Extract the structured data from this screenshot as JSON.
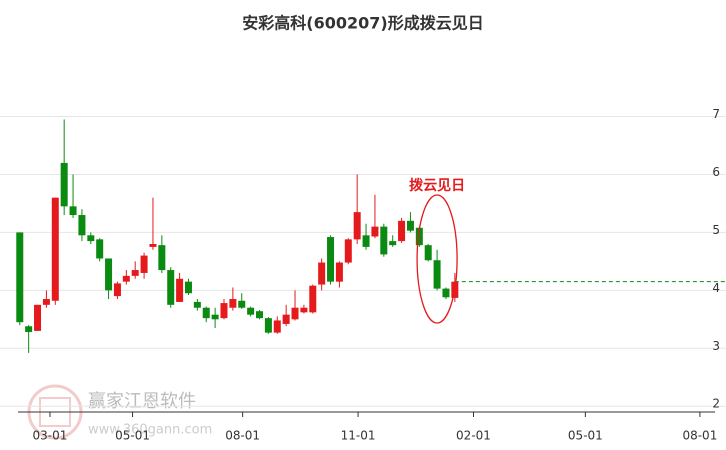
{
  "chart_data": {
    "type": "candlestick",
    "title": "安彩高科(600207)形成拨云见日",
    "annotation": "拨云见日",
    "watermark": [
      "赢家江恩软件",
      "www.360gann.com"
    ],
    "x": [
      0,
      1,
      2,
      3,
      4,
      5,
      6,
      7,
      8,
      9,
      10,
      11,
      12,
      13,
      14,
      15,
      16,
      17,
      18,
      19,
      20,
      21,
      22,
      23,
      24,
      25,
      26,
      27,
      28,
      29,
      30,
      31,
      32,
      33,
      34,
      35,
      36,
      37,
      38,
      39,
      40,
      41,
      42,
      43,
      44,
      45,
      46,
      47,
      48,
      49
    ],
    "series": [
      {
        "up_color": "#e41a1c",
        "down_color": "#0b8a12",
        "open": [
          5.0,
          3.38,
          3.3,
          3.75,
          3.82,
          6.2,
          5.45,
          5.3,
          4.95,
          4.88,
          4.55,
          3.9,
          4.15,
          4.25,
          4.3,
          4.75,
          4.78,
          4.35,
          3.8,
          4.15,
          3.8,
          3.7,
          3.58,
          3.52,
          3.7,
          3.82,
          3.7,
          3.64,
          3.52,
          3.27,
          3.42,
          3.5,
          3.62,
          3.62,
          4.1,
          4.92,
          4.15,
          4.48,
          4.88,
          4.95,
          4.93,
          5.1,
          4.85,
          4.85,
          5.2,
          5.08,
          4.78,
          4.52,
          4.03,
          3.87
        ],
        "high": [
          5.0,
          3.4,
          3.75,
          4.0,
          5.6,
          6.95,
          6.0,
          5.4,
          5.0,
          4.9,
          4.55,
          4.15,
          4.35,
          4.5,
          4.65,
          5.6,
          4.95,
          4.4,
          4.3,
          4.2,
          3.85,
          3.72,
          3.7,
          3.85,
          4.05,
          3.95,
          3.72,
          3.66,
          3.54,
          3.55,
          3.75,
          4.0,
          3.75,
          4.1,
          4.55,
          4.95,
          4.5,
          4.9,
          6.0,
          5.15,
          5.65,
          5.15,
          4.95,
          5.25,
          5.35,
          5.1,
          4.8,
          4.7,
          4.05,
          4.3
        ],
        "low": [
          3.4,
          2.92,
          3.3,
          3.7,
          3.75,
          5.3,
          5.25,
          4.85,
          4.8,
          4.5,
          3.85,
          3.85,
          4.1,
          4.2,
          4.2,
          4.7,
          4.3,
          3.7,
          3.8,
          3.92,
          3.65,
          3.45,
          3.35,
          3.5,
          3.65,
          3.68,
          3.55,
          3.5,
          3.25,
          3.25,
          3.38,
          3.48,
          3.6,
          3.6,
          4.0,
          4.1,
          4.05,
          4.45,
          4.8,
          4.7,
          4.9,
          4.58,
          4.75,
          4.82,
          5.0,
          4.75,
          4.5,
          4.0,
          3.85,
          3.8
        ],
        "close": [
          3.45,
          3.28,
          3.75,
          3.85,
          5.6,
          5.45,
          5.3,
          4.95,
          4.85,
          4.55,
          4.0,
          4.12,
          4.25,
          4.35,
          4.6,
          4.8,
          4.35,
          3.75,
          4.2,
          3.95,
          3.7,
          3.52,
          3.5,
          3.78,
          3.85,
          3.7,
          3.58,
          3.52,
          3.27,
          3.48,
          3.58,
          3.7,
          3.7,
          4.08,
          4.48,
          4.15,
          4.48,
          4.88,
          5.35,
          4.75,
          5.1,
          4.62,
          4.78,
          5.2,
          5.03,
          4.78,
          4.52,
          4.03,
          3.88,
          4.15
        ]
      }
    ],
    "xlim": [
      -0.2,
      78.3
    ],
    "xticks": [
      {
        "value": 3.4,
        "label": "03-01"
      },
      {
        "value": 12.7,
        "label": "05-01"
      },
      {
        "value": 25.1,
        "label": "08-01"
      },
      {
        "value": 38.1,
        "label": "11-01"
      },
      {
        "value": 51.1,
        "label": "02-01"
      },
      {
        "value": 63.7,
        "label": "05-01"
      },
      {
        "value": 76.6,
        "label": "08-01"
      }
    ],
    "ylim": [
      1.9,
      7.7
    ],
    "yticks": [
      2,
      3,
      4,
      5,
      6,
      7
    ],
    "grid": true
  }
}
